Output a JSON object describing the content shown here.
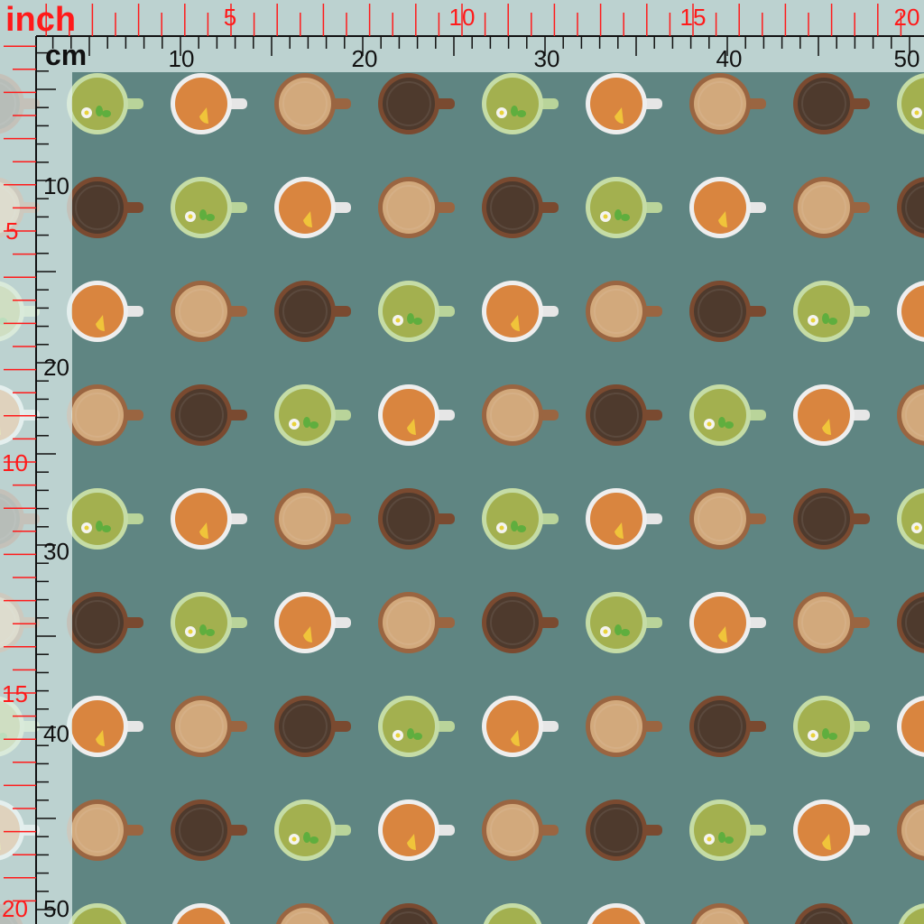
{
  "rulers": {
    "inch_label": "inch",
    "cm_label": "cm",
    "top_inch_ticks": [
      "5",
      "10",
      "15",
      "20"
    ],
    "top_cm_ticks": [
      "10",
      "20",
      "30",
      "40",
      "50"
    ],
    "left_inch_ticks": [
      "5",
      "10",
      "15",
      "20"
    ],
    "left_cm_ticks": [
      "10",
      "20",
      "30",
      "40",
      "50"
    ],
    "inch_color": "#ff1a1a",
    "cm_color": "#111111"
  },
  "fabric": {
    "background": "#5f8582",
    "cup_types": [
      {
        "name": "green tea",
        "liquid": "#a3b04f",
        "rim": "#c5dca6",
        "handle": "#b9d49a",
        "garnish": "chamomile-mint"
      },
      {
        "name": "orange tea",
        "liquid": "#d9853f",
        "rim": "#eeeeee",
        "handle": "#e6e6e6",
        "garnish": "lemon-slice"
      },
      {
        "name": "latte",
        "liquid": "#d2a97c",
        "rim": "#9a6541",
        "handle": "#9a6541",
        "garnish": "none"
      },
      {
        "name": "black coffee",
        "liquid": "#4e3a2d",
        "rim": "#7a4a30",
        "handle": "#7a4a30",
        "garnish": "none"
      }
    ],
    "row_start_sequence": [
      0,
      3,
      1,
      2
    ]
  }
}
